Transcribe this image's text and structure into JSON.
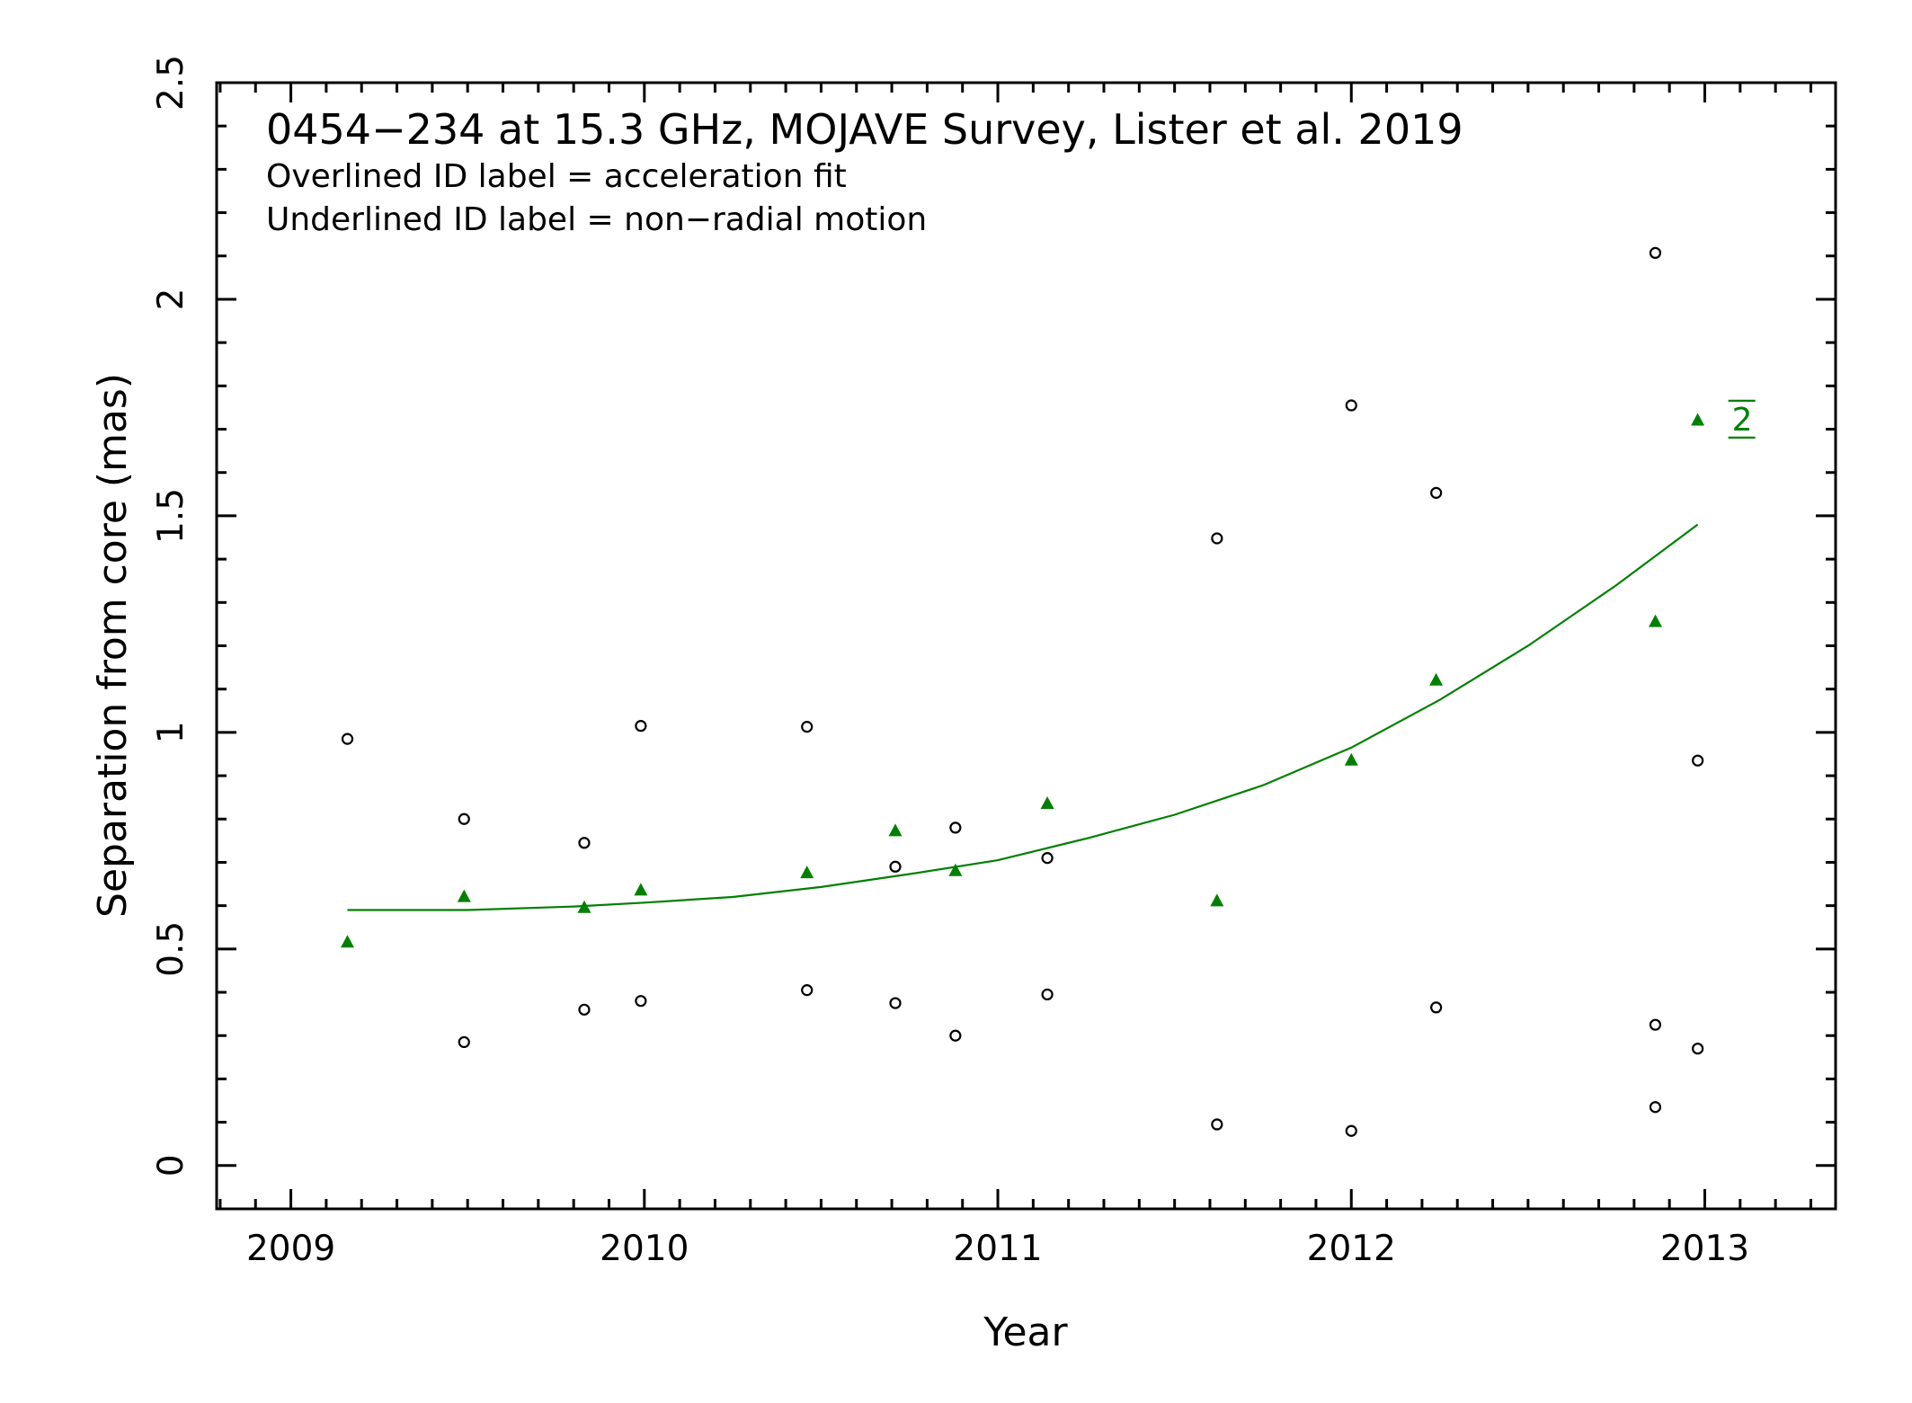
{
  "chart_data": {
    "type": "scatter",
    "title": "0454−234 at 15.3 GHz, MOJAVE Survey, Lister et al. 2019",
    "annotations": [
      "Overlined ID label = acceleration fit",
      "Underlined ID label = non−radial motion"
    ],
    "xlabel": "Year",
    "ylabel": "Separation from core (mas)",
    "xlim": [
      2008.79,
      2013.37
    ],
    "ylim": [
      -0.1,
      2.5
    ],
    "x_ticks": [
      2009,
      2010,
      2011,
      2012,
      2013
    ],
    "y_ticks": [
      0,
      0.5,
      1,
      1.5,
      2,
      2.5
    ],
    "x_tick_labels": [
      "2009",
      "2010",
      "2011",
      "2012",
      "2013"
    ],
    "y_tick_labels": [
      "0",
      "0.5",
      "1",
      "1.5",
      "2",
      "2.5"
    ],
    "grid": false,
    "series": [
      {
        "marker": "open-circle",
        "color": "#000000",
        "points": [
          [
            2009.16,
            0.985
          ],
          [
            2009.49,
            0.8
          ],
          [
            2009.49,
            0.285
          ],
          [
            2009.83,
            0.745
          ],
          [
            2009.83,
            0.36
          ],
          [
            2009.99,
            1.015
          ],
          [
            2009.99,
            0.38
          ],
          [
            2010.46,
            1.013
          ],
          [
            2010.46,
            0.405
          ],
          [
            2010.71,
            0.69
          ],
          [
            2010.71,
            0.375
          ],
          [
            2010.88,
            0.78
          ],
          [
            2010.88,
            0.3
          ],
          [
            2011.14,
            0.71
          ],
          [
            2011.14,
            0.395
          ],
          [
            2011.62,
            1.448
          ],
          [
            2011.62,
            0.095
          ],
          [
            2012.0,
            1.755
          ],
          [
            2012.0,
            0.08
          ],
          [
            2012.24,
            1.553
          ],
          [
            2012.24,
            0.365
          ],
          [
            2012.86,
            2.107
          ],
          [
            2012.86,
            0.325
          ],
          [
            2012.86,
            0.135
          ],
          [
            2012.98,
            0.935
          ],
          [
            2012.98,
            0.27
          ]
        ]
      },
      {
        "name": "2",
        "label_style": "overlined",
        "marker": "filled-triangle",
        "color": "#008000",
        "points": [
          [
            2009.16,
            0.515
          ],
          [
            2009.49,
            0.62
          ],
          [
            2009.83,
            0.595
          ],
          [
            2009.99,
            0.635
          ],
          [
            2010.46,
            0.675
          ],
          [
            2010.71,
            0.772
          ],
          [
            2010.88,
            0.68
          ],
          [
            2011.14,
            0.835
          ],
          [
            2011.62,
            0.61
          ],
          [
            2012.0,
            0.935
          ],
          [
            2012.24,
            1.12
          ],
          [
            2012.86,
            1.255
          ],
          [
            2012.98,
            1.72
          ]
        ],
        "fit": {
          "type": "acceleration",
          "points": [
            [
              2009.16,
              0.59
            ],
            [
              2009.5,
              0.59
            ],
            [
              2009.8,
              0.598
            ],
            [
              2010.0,
              0.607
            ],
            [
              2010.25,
              0.62
            ],
            [
              2010.5,
              0.643
            ],
            [
              2010.75,
              0.673
            ],
            [
              2011.0,
              0.705
            ],
            [
              2011.25,
              0.755
            ],
            [
              2011.5,
              0.81
            ],
            [
              2011.75,
              0.878
            ],
            [
              2012.0,
              0.965
            ],
            [
              2012.25,
              1.075
            ],
            [
              2012.5,
              1.2
            ],
            [
              2012.75,
              1.34
            ],
            [
              2012.98,
              1.48
            ]
          ]
        }
      }
    ]
  }
}
